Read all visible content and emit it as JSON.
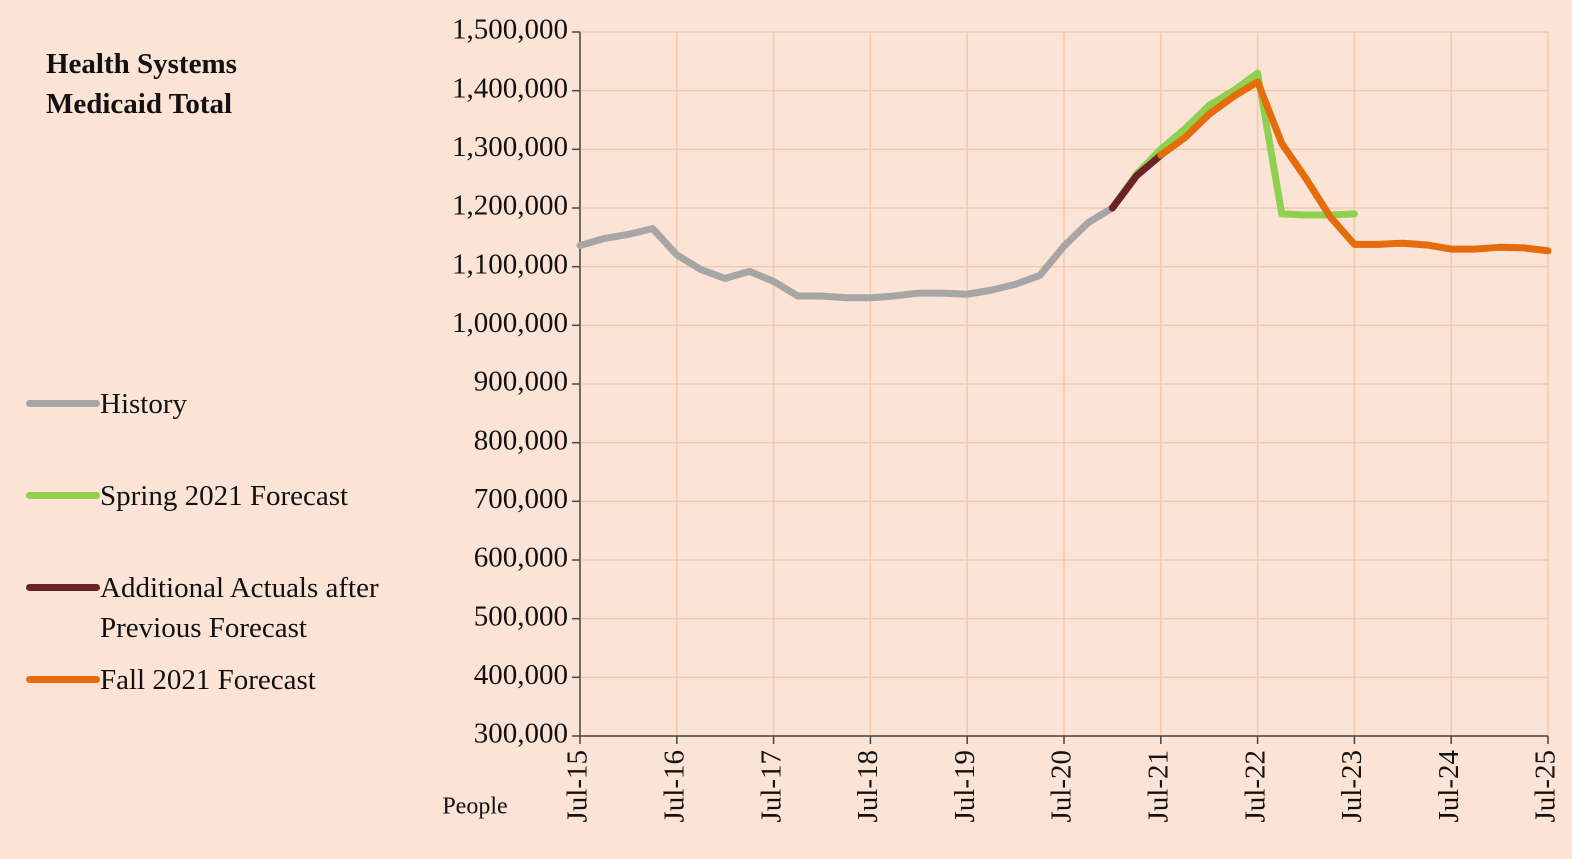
{
  "chart_data": {
    "type": "line",
    "title": "Health Systems Medicaid Total",
    "y_label": "People",
    "categories": [
      "Jul-15",
      null,
      null,
      null,
      "Jul-16",
      null,
      null,
      null,
      "Jul-17",
      null,
      null,
      null,
      "Jul-18",
      null,
      null,
      null,
      "Jul-19",
      null,
      null,
      null,
      "Jul-20",
      null,
      null,
      null,
      "Jul-21",
      null,
      null,
      null,
      "Jul-22",
      null,
      null,
      null,
      "Jul-23",
      null,
      null,
      null,
      "Jul-24",
      null,
      null,
      null,
      "Jul-25"
    ],
    "series": [
      {
        "name": "History",
        "color": "#a6a6a6",
        "values": [
          1136000,
          1148000,
          1155000,
          1165000,
          1120000,
          1095000,
          1080000,
          1092000,
          1075000,
          1050000,
          1050000,
          1047000,
          1047000,
          1050000,
          1055000,
          1055000,
          1053000,
          1060000,
          1070000,
          1085000,
          1135000,
          1175000,
          1200000,
          null,
          null,
          null,
          null,
          null,
          null,
          null,
          null,
          null,
          null,
          null,
          null,
          null,
          null,
          null,
          null,
          null,
          null
        ]
      },
      {
        "name": "Spring 2021 Forecast",
        "color": "#8fd14f",
        "values": [
          null,
          null,
          null,
          null,
          null,
          null,
          null,
          null,
          null,
          null,
          null,
          null,
          null,
          null,
          null,
          null,
          null,
          null,
          null,
          null,
          null,
          null,
          1200000,
          1258000,
          1300000,
          1335000,
          1375000,
          1400000,
          1430000,
          1190000,
          1188000,
          1188000,
          1190000,
          null,
          null,
          null,
          null,
          null,
          null,
          null,
          null
        ]
      },
      {
        "name": "Additional Actuals after Previous Forecast",
        "color": "#6b2226",
        "values": [
          null,
          null,
          null,
          null,
          null,
          null,
          null,
          null,
          null,
          null,
          null,
          null,
          null,
          null,
          null,
          null,
          null,
          null,
          null,
          null,
          null,
          null,
          1200000,
          1255000,
          1290000,
          null,
          null,
          null,
          null,
          null,
          null,
          null,
          null,
          null,
          null,
          null,
          null,
          null,
          null,
          null,
          null
        ]
      },
      {
        "name": "Fall 2021 Forecast",
        "color": "#e46c0a",
        "values": [
          null,
          null,
          null,
          null,
          null,
          null,
          null,
          null,
          null,
          null,
          null,
          null,
          null,
          null,
          null,
          null,
          null,
          null,
          null,
          null,
          null,
          null,
          null,
          null,
          1290000,
          1320000,
          1360000,
          1390000,
          1415000,
          1310000,
          1250000,
          1185000,
          1138000,
          1138000,
          1140000,
          1137000,
          1130000,
          1130000,
          1133000,
          1132000,
          1127000
        ]
      }
    ],
    "ylim": [
      300000,
      1500000
    ],
    "yticks": [
      {
        "value": 300000,
        "label": "300,000"
      },
      {
        "value": 400000,
        "label": "400,000"
      },
      {
        "value": 500000,
        "label": "500,000"
      },
      {
        "value": 600000,
        "label": "600,000"
      },
      {
        "value": 700000,
        "label": "700,000"
      },
      {
        "value": 800000,
        "label": "800,000"
      },
      {
        "value": 900000,
        "label": "900,000"
      },
      {
        "value": 1000000,
        "label": "1,000,000"
      },
      {
        "value": 1100000,
        "label": "1,100,000"
      },
      {
        "value": 1200000,
        "label": "1,200,000"
      },
      {
        "value": 1300000,
        "label": "1,300,000"
      },
      {
        "value": 1400000,
        "label": "1,400,000"
      },
      {
        "value": 1500000,
        "label": "1,500,000"
      }
    ],
    "grid": true
  }
}
